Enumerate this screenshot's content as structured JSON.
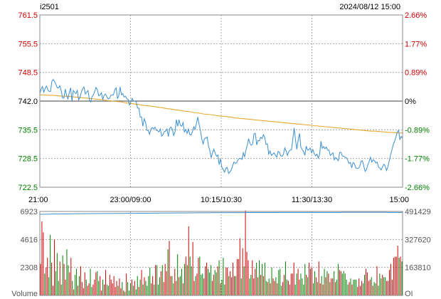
{
  "header": {
    "symbol": "i2501",
    "datetime": "2024/08/12 15:00"
  },
  "colors": {
    "up": "#cc0000",
    "down": "#008000",
    "flat": "#000000",
    "price_line": "#3b8fd0",
    "avg_line": "#e8a830",
    "oi_line": "#3b8fd0",
    "grid": "#999999",
    "frame": "#888888"
  },
  "chart_data": [
    {
      "type": "line",
      "panel": "price",
      "base_price": 742.0,
      "ylim": [
        722.5,
        761.5
      ],
      "y_ticks_left": [
        "761.5",
        "755.5",
        "748.5",
        "742.0",
        "735.5",
        "728.5",
        "722.5"
      ],
      "y_ticks_right": [
        "2.66%",
        "1.77%",
        "0.89%",
        "0%",
        "-0.89%",
        "-1.77%",
        "-2.66%"
      ],
      "x_ticks": [
        "21:00",
        "23:00/09:00",
        "10:15/10:30",
        "11:30/13:30",
        "15:00"
      ],
      "grid": true,
      "series": [
        {
          "values": [
            743.7,
            744.8,
            745.3,
            744.0,
            744.9,
            745.4,
            744.5,
            744.2,
            744.2,
            746.5,
            746.9,
            746.4,
            745.8,
            745.0,
            745.0,
            745.5,
            744.3,
            742.7,
            742.7,
            744.7,
            743.3,
            742.5,
            743.9,
            745.0,
            742.0,
            744.4,
            744.0,
            743.7,
            744.4,
            742.3,
            742.8,
            744.0,
            744.8,
            745.2,
            743.6,
            744.0,
            744.4,
            742.3,
            741.8,
            743.0,
            743.4,
            744.2,
            745.1,
            744.5,
            743.2,
            743.4,
            743.9,
            742.4,
            743.3,
            743.6,
            743.0,
            742.5,
            742.6,
            743.3,
            743.4,
            743.4,
            744.6,
            745.0,
            742.6,
            743.2,
            745.2,
            743.4,
            743.7,
            742.9,
            743.1,
            742.5,
            742.4,
            741.1,
            741.8,
            742.6,
            742.0,
            742.0,
            741.9,
            740.4,
            740.4,
            738.4,
            738.4,
            736.3,
            738.0,
            737.2,
            735.4,
            735.3,
            734.5,
            735.7,
            736.0,
            735.7,
            736.1,
            735.4,
            735.3,
            735.0,
            735.7,
            734.1,
            734.4,
            735.1,
            735.2,
            735.7,
            734.0,
            735.8,
            736.1,
            735.6,
            734.2,
            735.0,
            737.8,
            736.3,
            737.8,
            736.5,
            736.3,
            737.1,
            735.0,
            735.6,
            734.7,
            735.7,
            734.4,
            734.3,
            735.1,
            736.2,
            735.6,
            736.9,
            738.4,
            736.7,
            735.3,
            733.4,
            732.3,
            733.5,
            733.6,
            733.9,
            731.8,
            730.8,
            729.2,
            730.3,
            731.1,
            730.2,
            729.5,
            729.8,
            727.6,
            728.9,
            727.0,
            726.5,
            725.9,
            726.8,
            727.0,
            725.6,
            726.0,
            726.4,
            727.3,
            728.2,
            727.9,
            728.0,
            728.7,
            729.0,
            729.0,
            728.8,
            730.3,
            729.4,
            731.0,
            732.0,
            733.5,
            732.4,
            732.0,
            732.3,
            734.6,
            734.7,
            732.1,
            733.1,
            733.0,
            733.8,
            733.5,
            734.4,
            733.8,
            732.2,
            732.3,
            730.0,
            730.7,
            729.7,
            730.0,
            730.3,
            729.7,
            729.3,
            730.6,
            730.4,
            729.6,
            729.5,
            730.0,
            731.4,
            730.7,
            729.7,
            730.6,
            730.9,
            731.0,
            733.4,
            735.9,
            733.2,
            731.1,
            733.2,
            734.7,
            731.6,
            731.0,
            730.6,
            729.7,
            731.8,
            730.9,
            731.0,
            731.4,
            730.3,
            731.0,
            730.1,
            729.6,
            730.0,
            729.1,
            729.9,
            732.9,
            731.3,
            731.7,
            731.2,
            731.6,
            730.9,
            730.9,
            729.7,
            730.0,
            730.3,
            728.7,
            729.2,
            728.9,
            728.5,
            730.4,
            730.4,
            729.6,
            729.5,
            729.3,
            729.2,
            728.6,
            727.9,
            728.1,
            726.9,
            728.1,
            727.8,
            726.9,
            726.8,
            726.8,
            727.2,
            728.4,
            728.5,
            727.3,
            726.1,
            726.5,
            727.5,
            728.3,
            729.3,
            728.2,
            728.7,
            728.5,
            728.0,
            728.2,
            727.1,
            726.8,
            726.4,
            727.1,
            727.7,
            727.3,
            726.3,
            727.1,
            728.4,
            729.8,
            730.9,
            732.1,
            732.9,
            733.8,
            735.0,
            735.4,
            733.3,
            734.0,
            733.6
          ]
        },
        {
          "values": [
            743.4,
            743.4,
            743.3,
            743.3,
            743.2,
            743.1,
            743.1,
            743.0,
            742.9,
            742.8,
            742.7,
            742.6,
            742.5,
            742.4,
            742.3,
            742.1,
            742.0,
            741.9,
            741.8,
            741.6,
            741.5,
            741.3,
            741.2,
            741.0,
            740.9,
            740.8,
            740.6,
            740.5,
            740.3,
            740.2,
            740.0,
            739.9,
            739.7,
            739.6,
            739.4,
            739.3,
            739.1,
            739.0,
            738.9,
            738.7,
            738.6,
            738.5,
            738.4,
            738.2,
            738.1,
            738.0,
            737.9,
            737.8,
            737.7,
            737.6,
            737.5,
            737.4,
            737.3,
            737.2,
            737.1,
            737.0,
            736.9,
            736.8,
            736.7,
            736.6,
            736.5,
            736.4,
            736.3,
            736.2,
            736.1,
            736.0,
            735.9,
            735.8,
            735.7,
            735.6,
            735.5,
            735.4,
            735.3,
            735.2,
            735.2,
            735.1,
            735.0,
            734.9,
            734.9,
            734.8,
            734.8
          ]
        }
      ]
    },
    {
      "type": "bar",
      "panel": "volume",
      "y_ticks_left": [
        "6923",
        "4616",
        "2308",
        "Volume"
      ],
      "y_ticks_right": [
        "491429",
        "327620",
        "163810",
        "OI"
      ],
      "ylim": [
        0,
        6923
      ],
      "grid": true,
      "series": [
        {
          "values": [
            2600,
            6100,
            5200,
            1800,
            2300,
            3100,
            1500,
            5000,
            2700,
            800,
            4600,
            2000,
            3500,
            1200,
            2800,
            900,
            3300,
            2600,
            1300,
            3800,
            2500,
            1900,
            3100,
            1200,
            500,
            1700,
            2200,
            800,
            1600,
            2400,
            1100,
            600,
            1900,
            1300,
            800,
            1000,
            2200,
            700,
            900,
            1300,
            1900,
            2000,
            1200,
            1600,
            400,
            1300,
            900,
            2100,
            900,
            800,
            1700,
            1300,
            1000,
            1600,
            700,
            1200,
            800,
            1400,
            600,
            1100,
            400,
            300,
            1800,
            1100,
            400,
            1000,
            1300,
            800,
            1200,
            500,
            1600,
            700,
            1300,
            2100,
            900,
            1500,
            1200,
            800,
            1600,
            2300,
            1000,
            1600,
            900,
            2500,
            2500,
            900,
            1500,
            2000,
            2500,
            1100,
            2600,
            2000,
            3800,
            4500,
            1600,
            1600,
            1000,
            2200,
            1200,
            3400,
            1500,
            1600,
            2200,
            1000,
            2600,
            3200,
            2500,
            5700,
            3200,
            2400,
            4400,
            1200,
            1600,
            1800,
            3100,
            3200,
            1700,
            1800,
            1400,
            2400,
            2700,
            2200,
            1900,
            2500,
            1200,
            1700,
            2100,
            1900,
            2400,
            2900,
            1000,
            1300,
            3100,
            900,
            2300,
            2300,
            1600,
            2000,
            1500,
            2700,
            1600,
            1600,
            3000,
            3000,
            4700,
            1400,
            3900,
            2400,
            7000,
            3600,
            2900,
            1400,
            1700,
            2900,
            1400,
            2200,
            2700,
            1500,
            2900,
            1700,
            2600,
            1600,
            2700,
            1200,
            1100,
            1400,
            1000,
            2300,
            1400,
            1200,
            1500,
            1000,
            2100,
            2200,
            800,
            1100,
            1700,
            2800,
            1300,
            1200,
            900,
            1800,
            1800,
            2700,
            900,
            1800,
            2200,
            1300,
            1800,
            1400,
            900,
            2600,
            1700,
            1500,
            2700,
            2200,
            2300,
            1000,
            2000,
            1500,
            1100,
            2800,
            1000,
            1600,
            900,
            2200,
            1500,
            2000,
            1800,
            1100,
            1400,
            1400,
            2000,
            1100,
            1300,
            2600,
            2100,
            2000,
            1800,
            2000,
            1800,
            1300,
            900,
            1100,
            1400,
            900,
            1300,
            1300,
            1300,
            700,
            1400,
            800,
            1200,
            1000,
            1700,
            2200,
            1900,
            1200,
            1300,
            1500,
            800,
            1100,
            1000,
            2400,
            800,
            1800,
            1400,
            1700,
            1500,
            1500,
            1200,
            1200,
            2100,
            2600,
            1300,
            3100,
            3200,
            3200,
            4100,
            3100,
            3200,
            2800
          ]
        },
        {
          "values": [
            475000,
            475400,
            475800,
            476200,
            476500,
            476800,
            477100,
            477400,
            477700,
            478000,
            478300,
            478500,
            478800,
            479000,
            479300,
            479500,
            479700,
            479900,
            480100,
            480300,
            480500,
            480700,
            480900,
            481000,
            481200,
            481400,
            481600,
            481800,
            482000,
            482200,
            482400,
            482600,
            482800,
            483000,
            483200,
            483400,
            483600,
            483700,
            483900,
            484000,
            484200,
            484400,
            484500,
            484600,
            484800,
            484900,
            485000,
            485100,
            485200,
            485300,
            485300,
            485400,
            485400,
            485500,
            485500,
            485500,
            485500,
            485600,
            485600,
            485600,
            485700,
            485700,
            485800,
            485800,
            485900,
            485900,
            485900,
            486000,
            486000,
            486000,
            486100,
            486100,
            486100,
            486100,
            486100,
            486100,
            486000,
            485900,
            485800,
            485500,
            485100
          ]
        }
      ]
    }
  ]
}
